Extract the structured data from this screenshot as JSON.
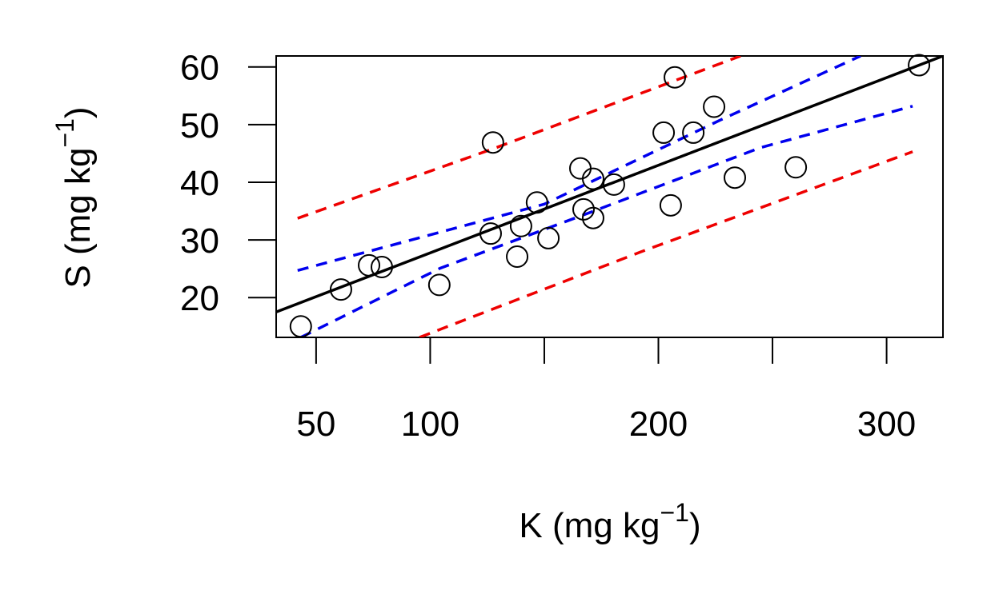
{
  "chart_data": {
    "type": "scatter",
    "xlabel": [
      "K (mg kg",
      "−1",
      ")"
    ],
    "ylabel": [
      "S (mg kg",
      "−1",
      ")"
    ],
    "xlim": [
      32.5,
      324.7
    ],
    "ylim": [
      13.1,
      61.9
    ],
    "xticks": [
      50,
      100,
      {
        "value": 150,
        "label": null
      },
      200,
      {
        "value": 250,
        "label": null
      },
      300
    ],
    "yticks": [
      20,
      30,
      40,
      50,
      60
    ],
    "point_color": "#000000",
    "x": [
      43.3,
      60.9,
      73.2,
      78.8,
      104.0,
      126.5,
      127.5,
      138.1,
      139.8,
      146.8,
      151.8,
      165.8,
      167.2,
      171.4,
      171.4,
      180.5,
      202.3,
      205.4,
      207.2,
      215.3,
      224.4,
      233.5,
      260.2,
      314.2
    ],
    "values": [
      15.0,
      21.4,
      25.6,
      25.3,
      22.2,
      31.1,
      46.9,
      27.1,
      32.4,
      36.5,
      30.3,
      42.4,
      35.3,
      40.6,
      33.8,
      39.6,
      48.6,
      36.0,
      58.2,
      48.6,
      53.1,
      40.8,
      42.6,
      60.3
    ],
    "lines": [
      {
        "color": "#000000",
        "dashed": false,
        "x": [
          32.5,
          324.7
        ],
        "values": [
          17.5,
          61.9
        ]
      },
      {
        "color": "#0000ee",
        "dashed": true,
        "x": [
          41.9,
          150,
          227.2,
          288.6
        ],
        "values": [
          24.7,
          36.2,
          50.8,
          61.9
        ]
      },
      {
        "color": "#0000ee",
        "dashed": true,
        "x": [
          43.3,
          104.4,
          171,
          244.7,
          311.4
        ],
        "values": [
          13.1,
          25.1,
          34.9,
          46.0,
          53.2
        ]
      },
      {
        "color": "#ee0000",
        "dashed": true,
        "x": [
          41.9,
          128.9,
          236
        ],
        "values": [
          33.75,
          46.0,
          61.9
        ]
      },
      {
        "color": "#ee0000",
        "dashed": true,
        "x": [
          95.3,
          192.1,
          311.4
        ],
        "values": [
          13.1,
          27.9,
          45.3
        ]
      }
    ]
  }
}
